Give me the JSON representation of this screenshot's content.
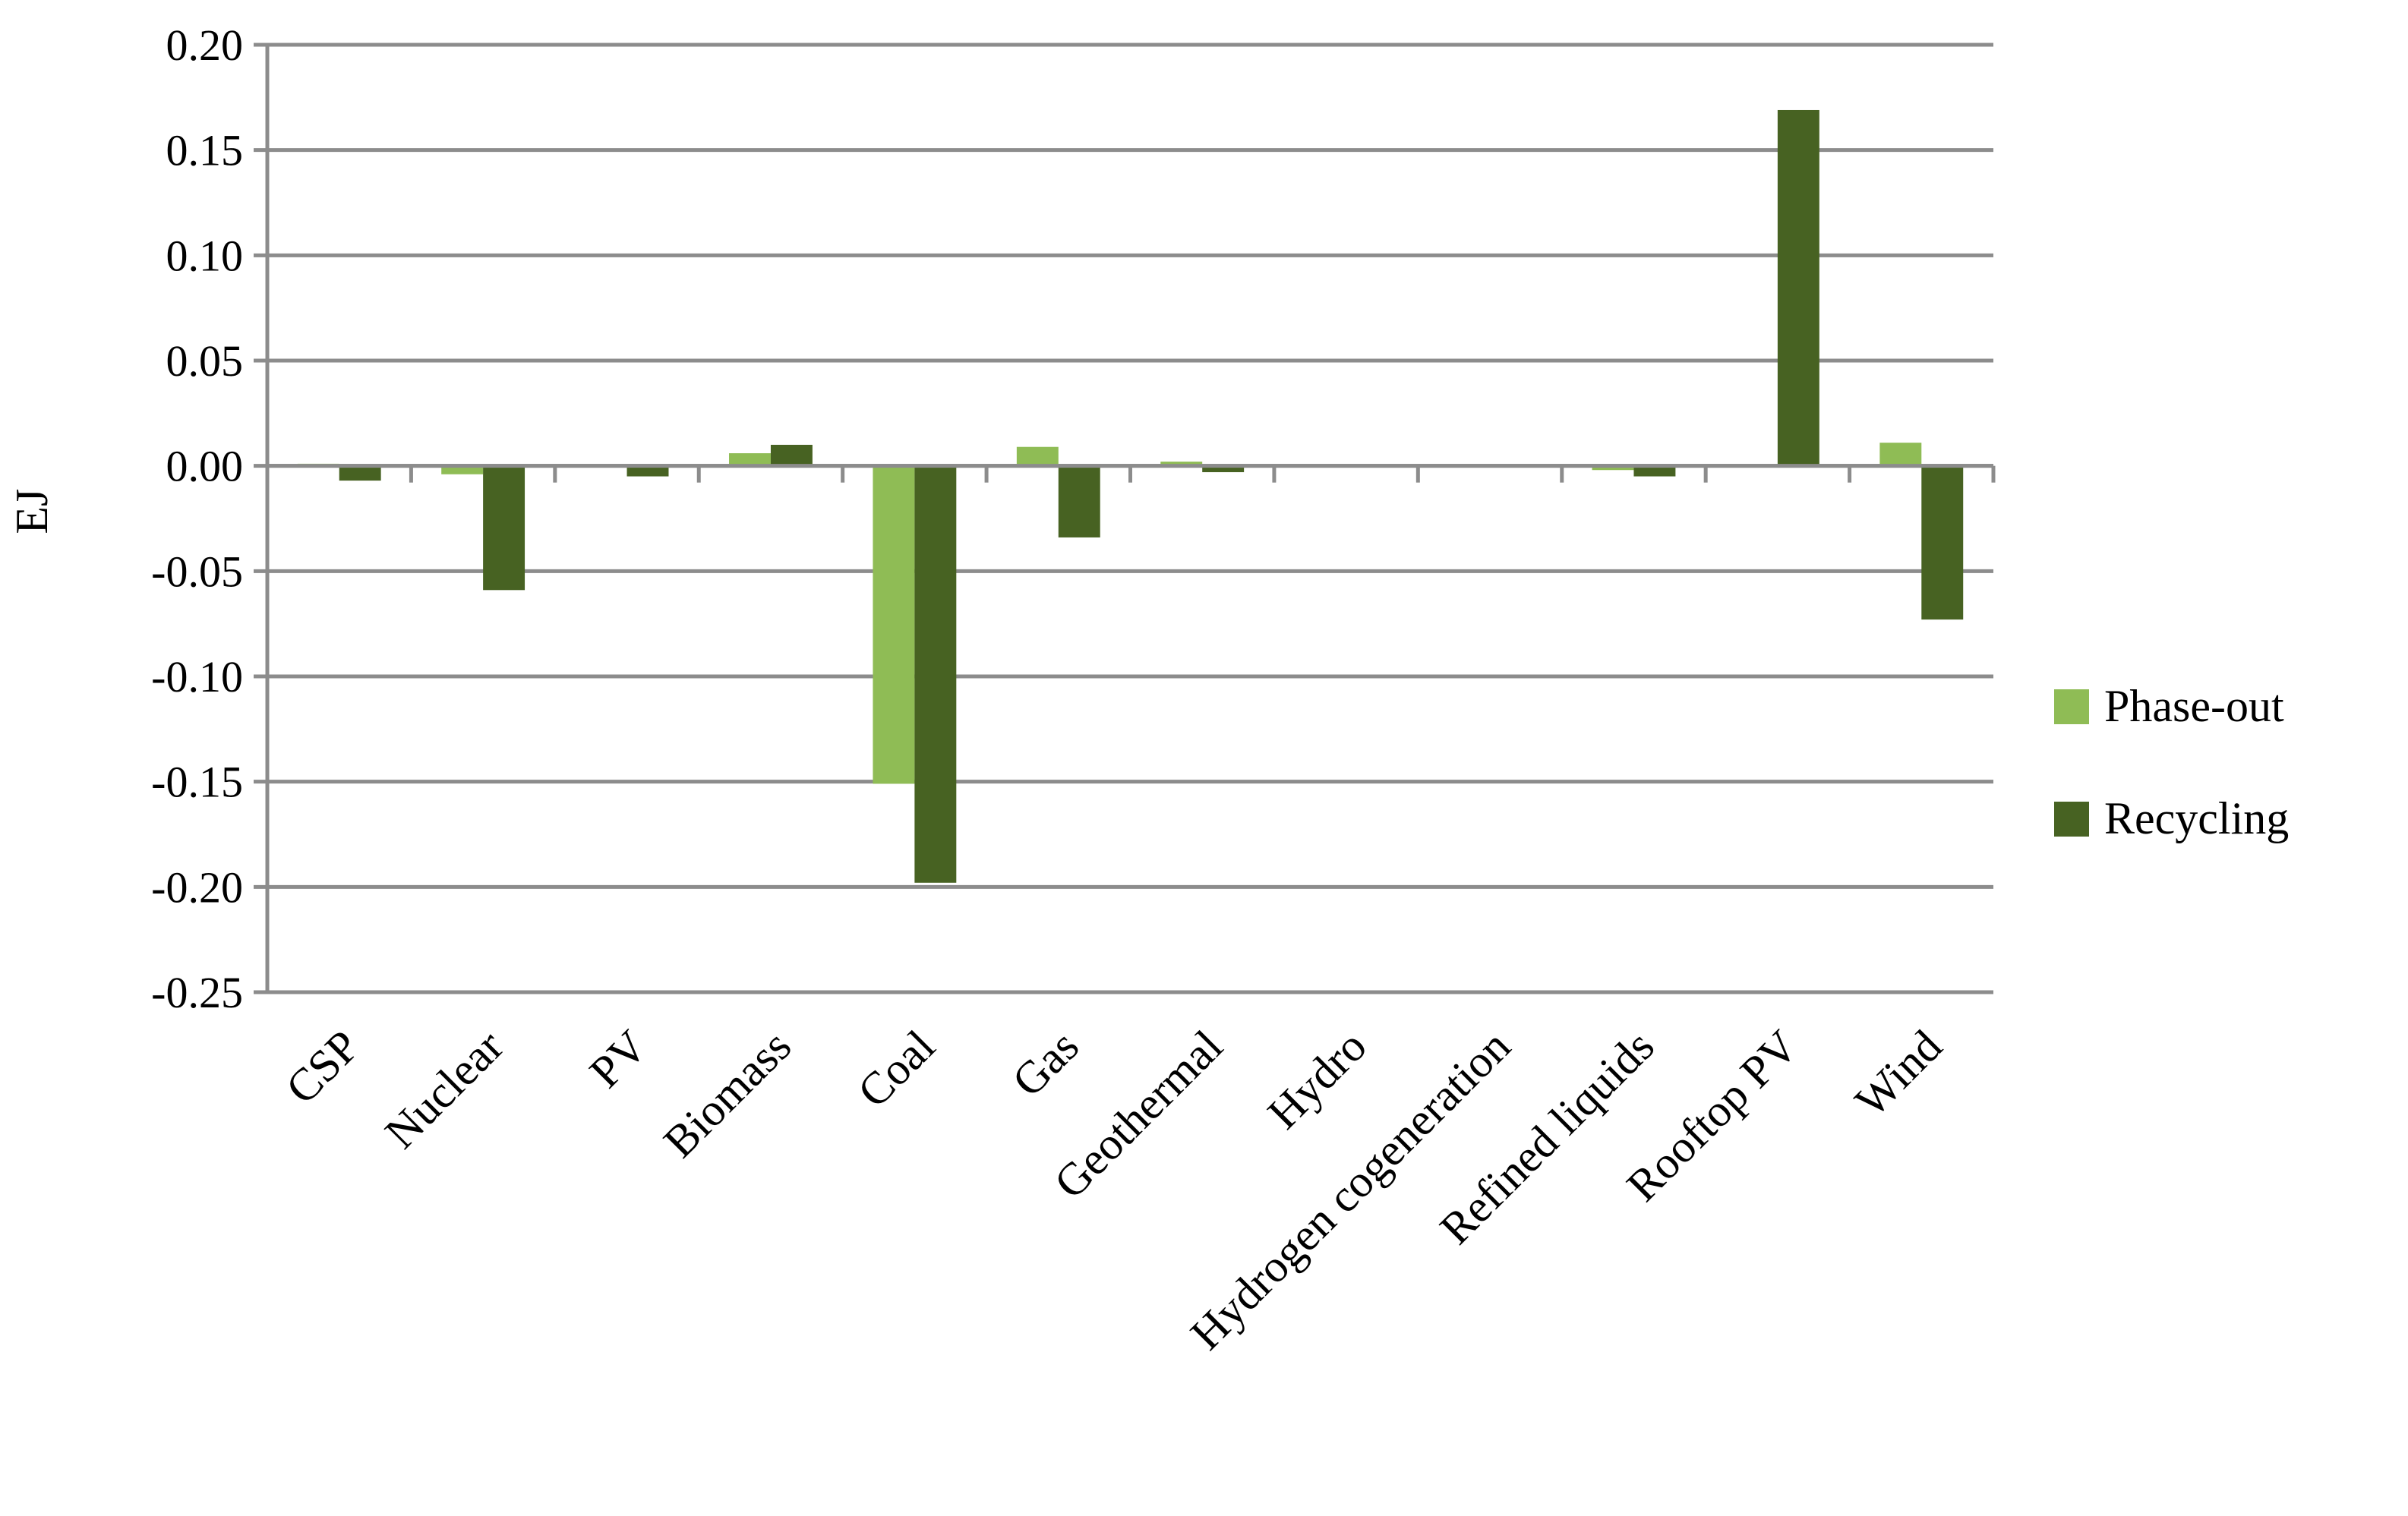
{
  "chart_data": {
    "type": "bar",
    "title": "",
    "xlabel": "",
    "ylabel": "EJ",
    "ylim": [
      -0.25,
      0.2
    ],
    "yticks": [
      0.2,
      0.15,
      0.1,
      0.05,
      0.0,
      -0.05,
      -0.1,
      -0.15,
      -0.2,
      -0.25
    ],
    "ytick_labels": [
      "0.20",
      "0.15",
      "0.10",
      "0.05",
      "0.00",
      "-0.05",
      "-0.10",
      "-0.15",
      "-0.20",
      "-0.25"
    ],
    "grid": true,
    "legend_position": "right",
    "categories": [
      "CSP",
      "Nuclear",
      "PV",
      "Biomass",
      "Coal",
      "Gas",
      "Geothermal",
      "Hydro",
      "Hydrogen cogeneration",
      "Refined liquids",
      "Rooftop PV",
      "Wind"
    ],
    "series": [
      {
        "name": "Phase-out",
        "color": "#8fbc55",
        "values": [
          0.001,
          -0.004,
          0.0,
          0.006,
          -0.151,
          0.009,
          0.002,
          0.0,
          0.0,
          -0.002,
          0.0,
          0.011
        ]
      },
      {
        "name": "Recycling",
        "color": "#476222",
        "values": [
          -0.007,
          -0.059,
          -0.005,
          0.01,
          -0.198,
          -0.034,
          -0.003,
          0.0,
          0.0,
          -0.005,
          0.169,
          -0.073
        ]
      }
    ],
    "colors": {
      "grid": "#8c8c8c",
      "axis": "#8c8c8c",
      "text": "#000000"
    }
  }
}
